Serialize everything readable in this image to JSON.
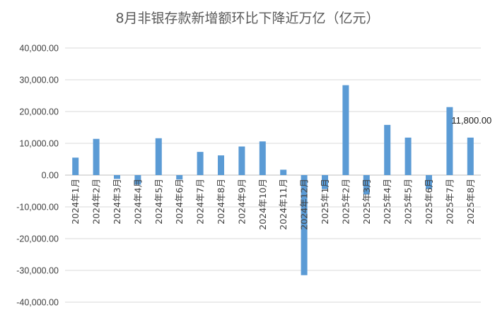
{
  "chart_data": {
    "type": "bar",
    "title": "8月非银存款新增额环比下降近万亿（亿元）",
    "xlabel": "",
    "ylabel": "",
    "ylim": [
      -40000,
      40000
    ],
    "yticks": [
      40000,
      30000,
      20000,
      10000,
      0,
      -10000,
      -20000,
      -30000,
      -40000
    ],
    "ytick_labels": [
      "40,000.00",
      "30,000.00",
      "20,000.00",
      "10,000.00",
      "0.00",
      "-10,000.00",
      "-20,000.00",
      "-30,000.00",
      "-40,000.00"
    ],
    "grid": true,
    "legend": "none",
    "bar_color": "#5b9bd5",
    "categories": [
      "2024年1月",
      "2024年2月",
      "2024年3月",
      "2024年4月",
      "2024年5月",
      "2024年6月",
      "2024年7月",
      "2024年8月",
      "2024年9月",
      "2024年10月",
      "2024年11月",
      "2024年12月",
      "2025年1月",
      "2025年2月",
      "2025年3月",
      "2025年4月",
      "2025年5月",
      "2025年6月",
      "2025年7月",
      "2025年8月"
    ],
    "values": [
      5500,
      11400,
      -1200,
      -3000,
      11600,
      -1400,
      7300,
      6200,
      9000,
      10600,
      1700,
      -31500,
      -4400,
      28300,
      -6100,
      15800,
      11800,
      -4400,
      21400,
      11800
    ],
    "data_labels": [
      {
        "index": 19,
        "text": "11,800.00"
      }
    ]
  }
}
